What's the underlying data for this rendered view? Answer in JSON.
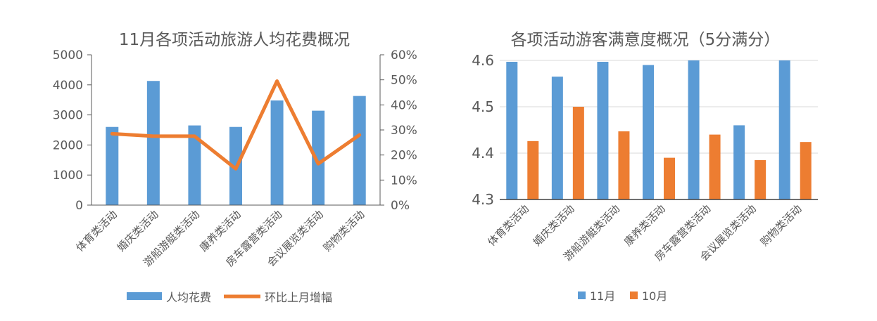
{
  "chart_data": [
    {
      "type": "bar+line",
      "title": "11月各项活动旅游人均花费概况",
      "categories": [
        "体育类活动",
        "婚庆类活动",
        "游船游艇类活动",
        "康养类活动",
        "房车露营类活动",
        "会议展览类活动",
        "购物类活动"
      ],
      "series": [
        {
          "name": "人均花费",
          "type": "bar",
          "axis": "left",
          "values": [
            2600,
            4130,
            2650,
            2600,
            3480,
            3140,
            3630
          ]
        },
        {
          "name": "环比上月增幅",
          "type": "line",
          "axis": "right",
          "values": [
            28.5,
            27.5,
            27.5,
            14.5,
            49.5,
            16.5,
            28
          ]
        }
      ],
      "ylim": [
        0,
        5000
      ],
      "yticks": [
        "0",
        "1000",
        "2000",
        "3000",
        "4000",
        "5000"
      ],
      "y2lim": [
        0,
        60
      ],
      "y2ticks": [
        "0%",
        "10%",
        "20%",
        "30%",
        "40%",
        "50%",
        "60%"
      ],
      "legend_position": "bottom"
    },
    {
      "type": "bar",
      "title": "各项活动游客满意度概况（5分满分）",
      "categories": [
        "体育类活动",
        "婚庆类活动",
        "游船游艇类活动",
        "康养类活动",
        "房车露营类活动",
        "会议展览类活动",
        "购物类活动"
      ],
      "series": [
        {
          "name": "11月",
          "values": [
            4.597,
            4.565,
            4.597,
            4.59,
            4.6,
            4.46,
            4.6
          ]
        },
        {
          "name": "10月",
          "values": [
            4.426,
            4.5,
            4.447,
            4.39,
            4.44,
            4.385,
            4.424
          ]
        }
      ],
      "ylim": [
        4.3,
        4.6
      ],
      "yticks": [
        "4.3",
        "4.4",
        "4.5",
        "4.6"
      ],
      "legend_position": "bottom"
    }
  ],
  "colors": {
    "blue": "#5b9bd5",
    "orange": "#ed7d31",
    "axis": "#595959",
    "grid": "#d9d9d9"
  }
}
